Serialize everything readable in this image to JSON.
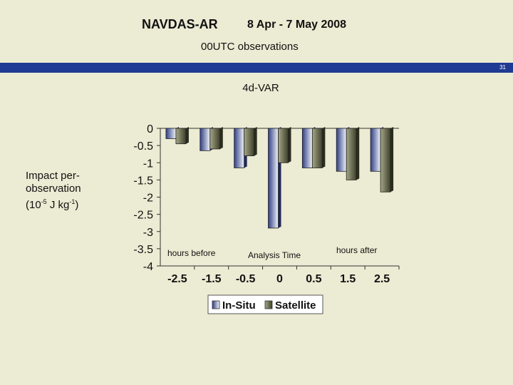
{
  "header": {
    "title": "NAVDAS-AR",
    "dates": "8 Apr -  7 May 2008",
    "subtitle": "00UTC observations",
    "slide_number": "31"
  },
  "y_axis_label": {
    "line1": "Impact per-",
    "line2": "observation",
    "line3_prefix": "(10",
    "exp1": "-5",
    "line3_mid": " J kg",
    "exp2": "-1",
    "line3_suffix": ")"
  },
  "colors": {
    "background": "#ecebd3",
    "strip": "#1f3a93",
    "in_situ_dark": "#2f3f86",
    "in_situ_light": "#f2f4f8",
    "satellite_dark": "#3d3f2a",
    "satellite_light": "#a5a787"
  },
  "chart_data": {
    "type": "bar",
    "title": "4d-VAR",
    "categories": [
      "-2.5",
      "-1.5",
      "-0.5",
      "0",
      "0.5",
      "1.5",
      "2.5"
    ],
    "series": [
      {
        "name": "In-Situ",
        "values": [
          -0.3,
          -0.65,
          -1.15,
          -2.9,
          -1.15,
          -1.25,
          -1.25
        ]
      },
      {
        "name": "Satellite",
        "values": [
          -0.45,
          -0.6,
          -0.8,
          -1.0,
          -1.15,
          -1.5,
          -1.85
        ]
      }
    ],
    "ylim": [
      -4,
      0
    ],
    "yticks": [
      "0",
      "-0.5",
      "-1",
      "-1.5",
      "-2",
      "-2.5",
      "-3",
      "-3.5",
      "-4"
    ],
    "annotations": {
      "before": "hours before",
      "analysis": "Analysis Time",
      "after": "hours after"
    },
    "legend_position": "bottom"
  }
}
